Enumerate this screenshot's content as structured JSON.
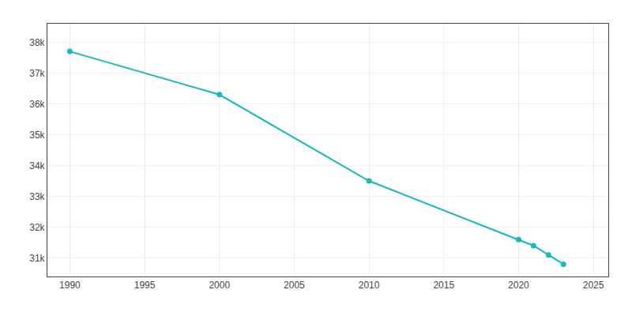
{
  "chart_data": {
    "type": "line",
    "x": [
      1990,
      2000,
      2010,
      2020,
      2021,
      2022,
      2023
    ],
    "values": [
      37700,
      36300,
      33500,
      31600,
      31400,
      31100,
      30800
    ],
    "color": "#17b8be",
    "marker": "circle",
    "line_style": "solid",
    "xlim": [
      1988.5,
      2026
    ],
    "ylim": [
      30400,
      38600
    ],
    "xticks": [
      1990,
      1995,
      2000,
      2005,
      2010,
      2015,
      2020,
      2025
    ],
    "yticks": [
      {
        "value": 31000,
        "label": "31k"
      },
      {
        "value": 32000,
        "label": "32k"
      },
      {
        "value": 33000,
        "label": "33k"
      },
      {
        "value": 34000,
        "label": "34k"
      },
      {
        "value": 35000,
        "label": "35k"
      },
      {
        "value": 36000,
        "label": "36k"
      },
      {
        "value": 37000,
        "label": "37k"
      },
      {
        "value": 38000,
        "label": "38k"
      }
    ],
    "grid": true
  }
}
